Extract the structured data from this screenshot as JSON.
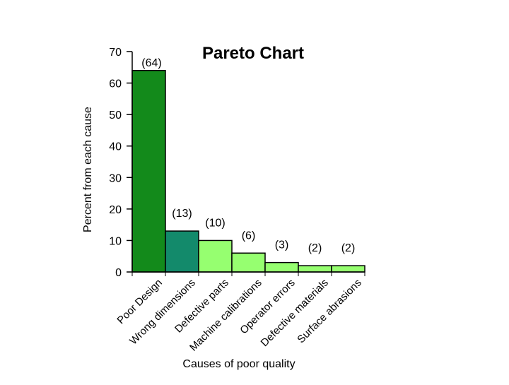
{
  "chart_data": {
    "type": "bar",
    "title": "Pareto Chart",
    "xlabel": "Causes of poor quality",
    "ylabel": "Percent from each cause",
    "ylim": [
      0,
      70
    ],
    "yticks": [
      0,
      10,
      20,
      30,
      40,
      50,
      60,
      70
    ],
    "grid": false,
    "categories": [
      "Poor Design",
      "Wrong dimensions",
      "Defective parts",
      "Machine calibrations",
      "Operator errors",
      "Defective materials",
      "Surface abrasions"
    ],
    "values": [
      64,
      13,
      10,
      6,
      3,
      2,
      2
    ],
    "data_labels": [
      "(64)",
      "(13)",
      "(10)",
      "(6)",
      "(3)",
      "(2)",
      "(2)"
    ],
    "colors": [
      "#138a1b",
      "#138a6b",
      "#96ff70",
      "#96ff70",
      "#96ff70",
      "#96ff70",
      "#96ff70"
    ]
  }
}
